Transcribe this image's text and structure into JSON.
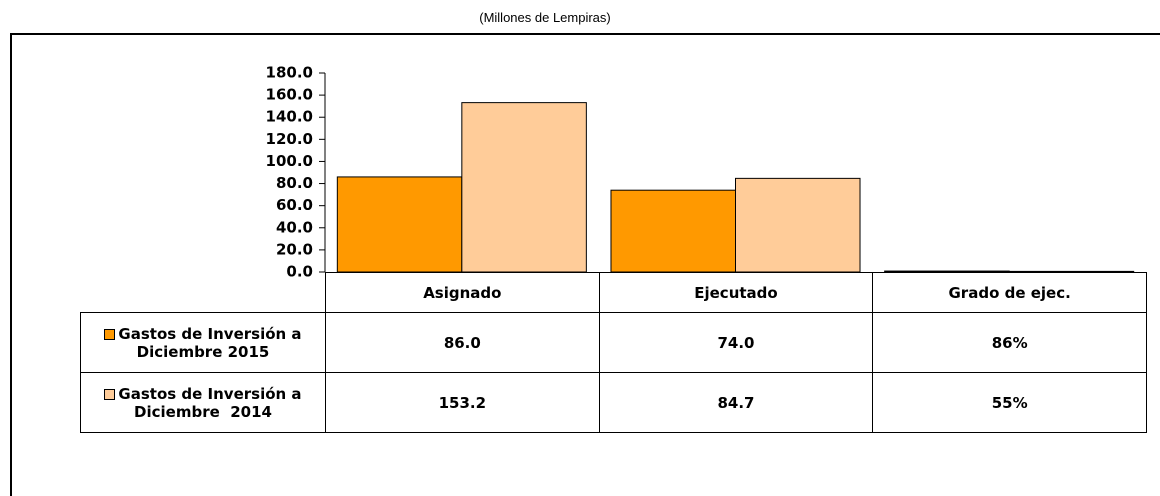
{
  "chart_data": {
    "type": "bar",
    "subtitle": "(Millones de Lempiras)",
    "categories": [
      "Asignado",
      "Ejecutado",
      "Grado de ejec."
    ],
    "series": [
      {
        "name": "Gastos de Inversión a Diciembre 2015",
        "color": "#ff9900",
        "values": [
          86.0,
          74.0,
          0.86
        ],
        "value_labels": [
          "86.0",
          "74.0",
          "86%"
        ]
      },
      {
        "name": "Gastos de Inversión a Diciembre  2014",
        "color": "#ffcc99",
        "values": [
          153.2,
          84.7,
          0.55
        ],
        "value_labels": [
          "153.2",
          "84.7",
          "55%"
        ]
      }
    ],
    "ylim": [
      0,
      180
    ],
    "yticks": [
      {
        "value": 0,
        "label": "0.0"
      },
      {
        "value": 20,
        "label": "20.0"
      },
      {
        "value": 40,
        "label": "40.0"
      },
      {
        "value": 60,
        "label": "60.0"
      },
      {
        "value": 80,
        "label": "80.0"
      },
      {
        "value": 100,
        "label": "100.0"
      },
      {
        "value": 120,
        "label": "120.0"
      },
      {
        "value": 140,
        "label": "140.0"
      },
      {
        "value": 160,
        "label": "160.0"
      },
      {
        "value": 180,
        "label": "180.0"
      }
    ]
  }
}
